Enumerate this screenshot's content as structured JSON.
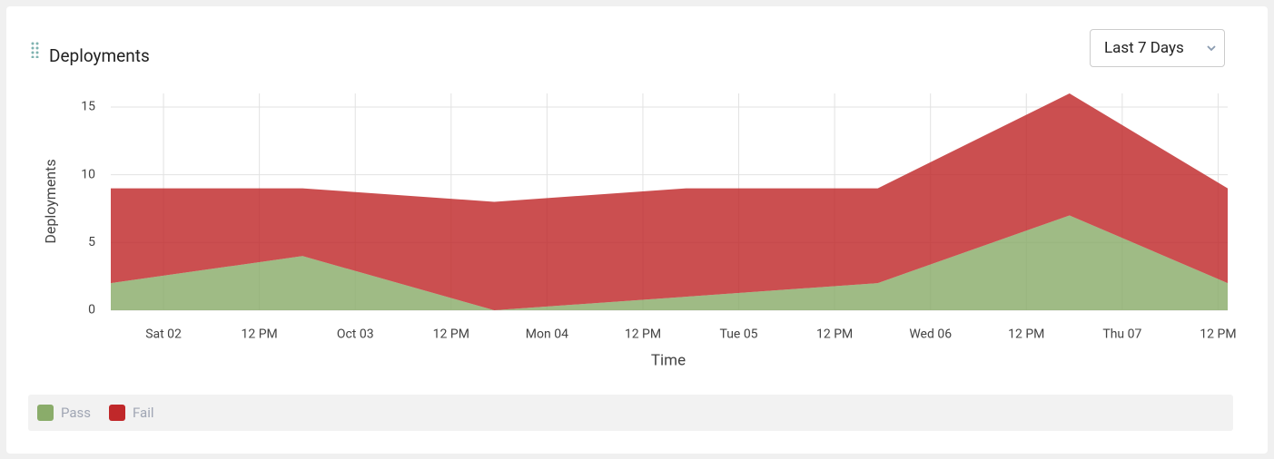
{
  "title": "Deployments",
  "dropdown": "Last 7 Days",
  "chart_data": {
    "type": "stacked_area",
    "x": [
      1.725,
      2.725,
      3.725,
      4.725,
      5.725,
      6.725,
      7.55
    ],
    "xlim": [
      1.725,
      7.55
    ],
    "xticks": [
      {
        "value": 2,
        "label": "Sat 02"
      },
      {
        "value": 2.5,
        "label": "12 PM"
      },
      {
        "value": 3,
        "label": "Oct 03"
      },
      {
        "value": 3.5,
        "label": "12 PM"
      },
      {
        "value": 4,
        "label": "Mon 04"
      },
      {
        "value": 4.5,
        "label": "12 PM"
      },
      {
        "value": 5,
        "label": "Tue 05"
      },
      {
        "value": 5.5,
        "label": "12 PM"
      },
      {
        "value": 6,
        "label": "Wed 06"
      },
      {
        "value": 6.5,
        "label": "12 PM"
      },
      {
        "value": 7,
        "label": "Thu 07"
      },
      {
        "value": 7.5,
        "label": "12 PM"
      }
    ],
    "ylim": [
      0,
      16
    ],
    "yticks": [
      0,
      5,
      10,
      15
    ],
    "xlabel": "Time",
    "ylabel": "Deployments",
    "grid": true,
    "series": [
      {
        "name": "Pass",
        "color": "#8aac6a",
        "values": [
          2,
          4,
          0,
          1,
          2,
          7,
          2
        ]
      },
      {
        "name": "Fail",
        "color": "#c0282a",
        "values": [
          7,
          5,
          8,
          8,
          7,
          9,
          7
        ]
      }
    ]
  }
}
